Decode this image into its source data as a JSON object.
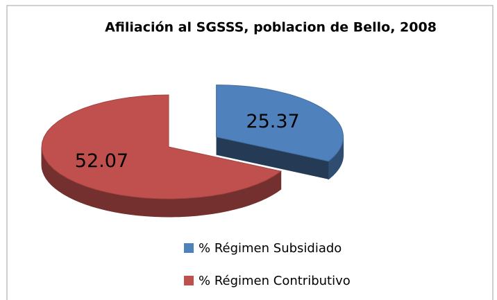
{
  "chart_data": {
    "type": "pie",
    "title": "Afiliación al SGSSS, poblacion de Bello, 2008",
    "categories": [
      "% Régimen Subsidiado",
      "% Régimen Contributivo"
    ],
    "values": [
      25.37,
      52.07
    ],
    "colors": [
      "#4f81bd",
      "#c0504d"
    ],
    "legend": "bottom"
  }
}
